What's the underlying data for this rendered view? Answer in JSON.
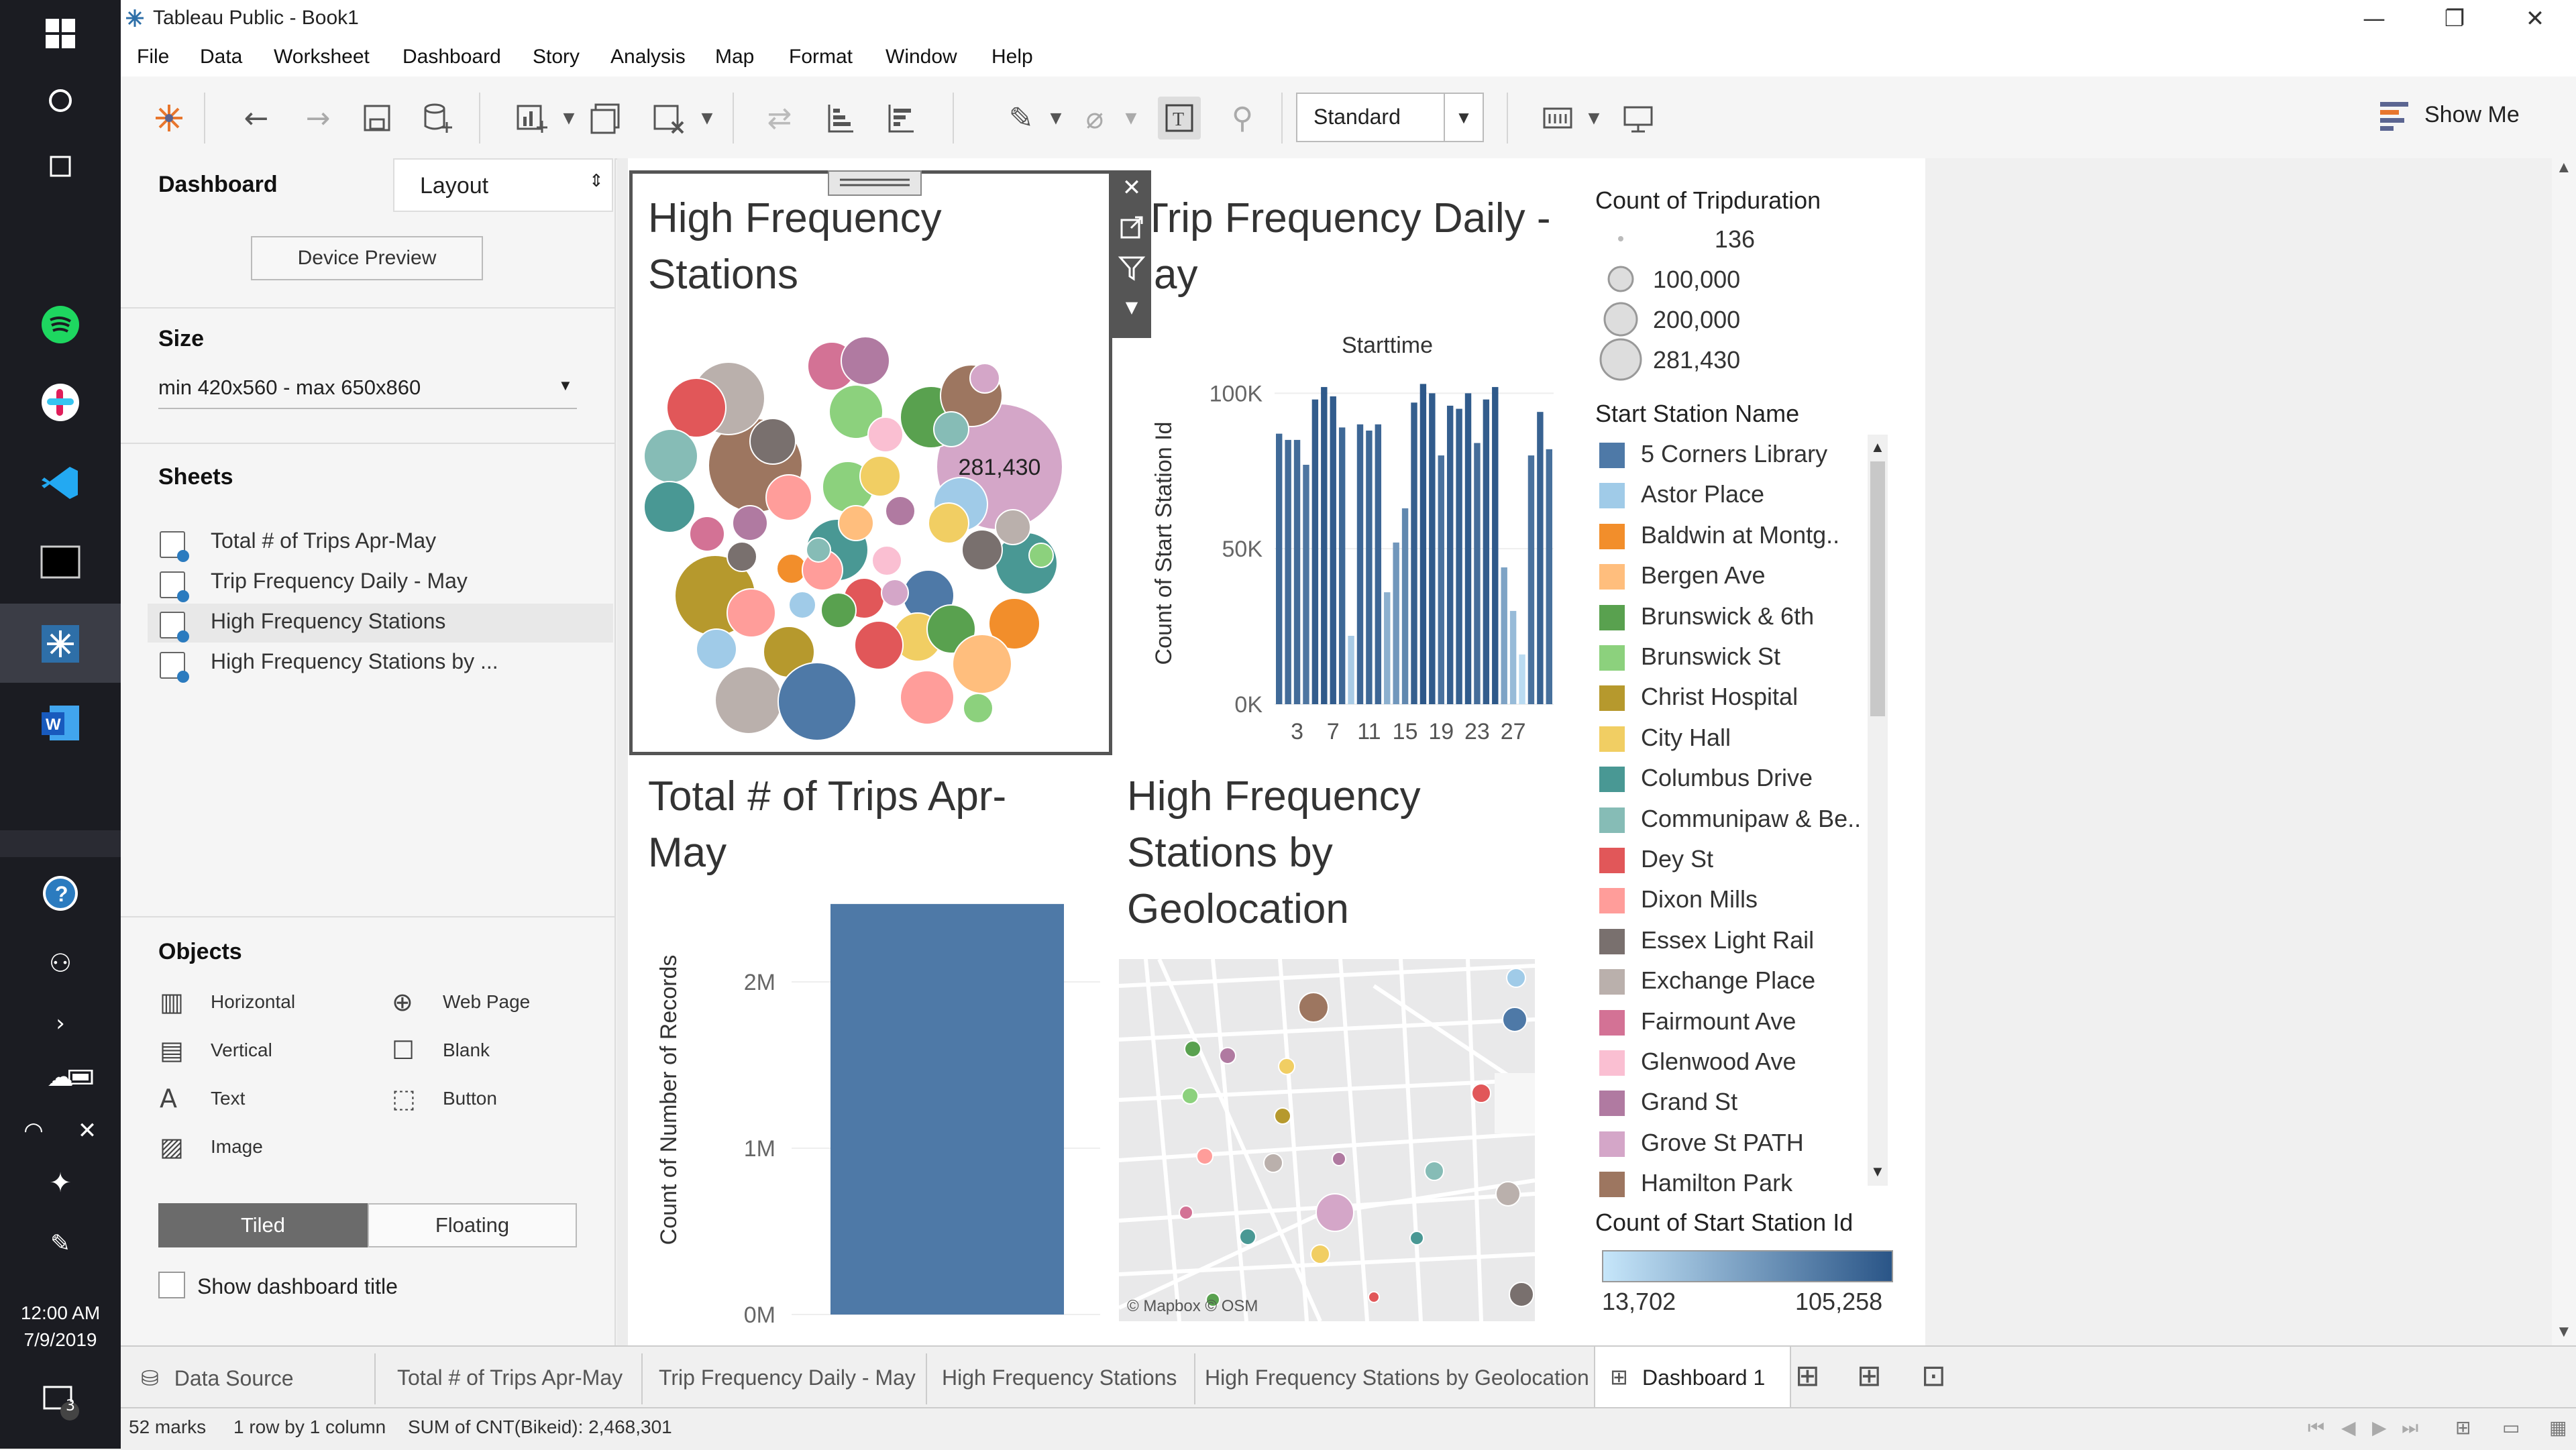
{
  "window": {
    "title": "Tableau Public - Book1",
    "controls": [
      "—",
      "❐",
      "✕"
    ]
  },
  "menu": [
    "File",
    "Data",
    "Worksheet",
    "Dashboard",
    "Story",
    "Analysis",
    "Map",
    "Format",
    "Window",
    "Help"
  ],
  "toolbar": {
    "view_select": "Standard",
    "show_me": "Show Me"
  },
  "taskbar": {
    "time": "12:00 AM",
    "date": "7/9/2019",
    "notifications": "3"
  },
  "left_pane": {
    "tab_dashboard": "Dashboard",
    "tab_layout": "Layout",
    "device_preview": "Device Preview",
    "size_label": "Size",
    "size_value": "min 420x560 - max 650x860",
    "sheets_label": "Sheets",
    "sheets": [
      "Total # of Trips Apr-May",
      "Trip Frequency Daily - May",
      "High Frequency Stations",
      "High Frequency Stations by ..."
    ],
    "objects_label": "Objects",
    "objects": [
      {
        "label": "Horizontal",
        "icon": "horizontal-icon"
      },
      {
        "label": "Web Page",
        "icon": "globe-icon"
      },
      {
        "label": "Vertical",
        "icon": "vertical-icon"
      },
      {
        "label": "Blank",
        "icon": "blank-icon"
      },
      {
        "label": "Text",
        "icon": "text-icon"
      },
      {
        "label": "Button",
        "icon": "button-icon"
      },
      {
        "label": "Image",
        "icon": "image-icon"
      }
    ],
    "tiled": "Tiled",
    "floating": "Floating",
    "show_title": "Show dashboard title"
  },
  "dashboard": {
    "bubble_title": "High Frequency Stations",
    "bubble_label": "281,430",
    "trip_title": "Trip Frequency Daily - May",
    "trip_col_header": "Starttime",
    "trip_ylabel": "Count of Start Station Id",
    "total_title": "Total # of Trips Apr-May",
    "total_ylabel": "Count of Number of Records",
    "total_value_label": "2,468,301",
    "map_title": "High Frequency Stations by Geolocation",
    "map_attrib": "© Mapbox © OSM"
  },
  "legend": {
    "size_title": "Count of Tripduration",
    "size_items": [
      "136",
      "100,000",
      "200,000",
      "281,430"
    ],
    "color_title": "Start Station Name",
    "stations": [
      {
        "name": "5 Corners Library",
        "color": "#4e79a7"
      },
      {
        "name": "Astor Place",
        "color": "#a0cbe8"
      },
      {
        "name": "Baldwin at Montg..",
        "color": "#f28e2b"
      },
      {
        "name": "Bergen Ave",
        "color": "#ffbe7d"
      },
      {
        "name": "Brunswick & 6th",
        "color": "#59a14f"
      },
      {
        "name": "Brunswick St",
        "color": "#8cd17d"
      },
      {
        "name": "Christ Hospital",
        "color": "#b6992d"
      },
      {
        "name": "City Hall",
        "color": "#f1ce63"
      },
      {
        "name": "Columbus Drive",
        "color": "#499894"
      },
      {
        "name": "Communipaw & Be..",
        "color": "#86bcb6"
      },
      {
        "name": "Dey St",
        "color": "#e15759"
      },
      {
        "name": "Dixon Mills",
        "color": "#ff9d9a"
      },
      {
        "name": "Essex Light Rail",
        "color": "#79706e"
      },
      {
        "name": "Exchange Place",
        "color": "#bab0ac"
      },
      {
        "name": "Fairmount Ave",
        "color": "#d37295"
      },
      {
        "name": "Glenwood Ave",
        "color": "#fabfd2"
      },
      {
        "name": "Grand St",
        "color": "#b07aa1"
      },
      {
        "name": "Grove St PATH",
        "color": "#d4a6c8"
      },
      {
        "name": "Hamilton Park",
        "color": "#9d7660"
      }
    ],
    "gradient_title": "Count of Start Station Id",
    "gradient_min": "13,702",
    "gradient_max": "105,258"
  },
  "tabs": [
    "Data Source",
    "Total # of Trips Apr-May",
    "Trip Frequency Daily - May",
    "High Frequency Stations",
    "High Frequency Stations by Geolocation",
    "Dashboard 1"
  ],
  "status": {
    "marks": "52 marks",
    "rows": "1 row by 1 column",
    "sum": "SUM of CNT(Bikeid): 2,468,301"
  },
  "chart_data": [
    {
      "type": "bar",
      "title": "Trip Frequency Daily - May",
      "xlabel": "Starttime",
      "ylabel": "Count of Start Station Id",
      "x": [
        1,
        2,
        3,
        4,
        5,
        6,
        7,
        8,
        9,
        10,
        11,
        12,
        13,
        14,
        15,
        16,
        17,
        18,
        19,
        20,
        21,
        22,
        23,
        24,
        25,
        26,
        27,
        28,
        29,
        30,
        31
      ],
      "x_ticks": [
        "3",
        "7",
        "11",
        "15",
        "19",
        "23",
        "27"
      ],
      "y_ticks": [
        "0K",
        "50K",
        "100K"
      ],
      "ylim": [
        0,
        110000
      ],
      "values": [
        87000,
        85000,
        85000,
        77000,
        98000,
        102000,
        99000,
        89000,
        22000,
        90000,
        88000,
        90000,
        36000,
        52000,
        63000,
        97000,
        103000,
        100000,
        80000,
        96000,
        95000,
        100000,
        84000,
        98000,
        102000,
        44000,
        30000,
        16000,
        80000,
        94000,
        82000
      ]
    },
    {
      "type": "bar",
      "title": "Total # of Trips Apr-May",
      "ylabel": "Count of Number of Records",
      "y_ticks": [
        "0M",
        "1M",
        "2M"
      ],
      "ylim": [
        0,
        2500000
      ],
      "values": [
        2468301
      ]
    }
  ]
}
